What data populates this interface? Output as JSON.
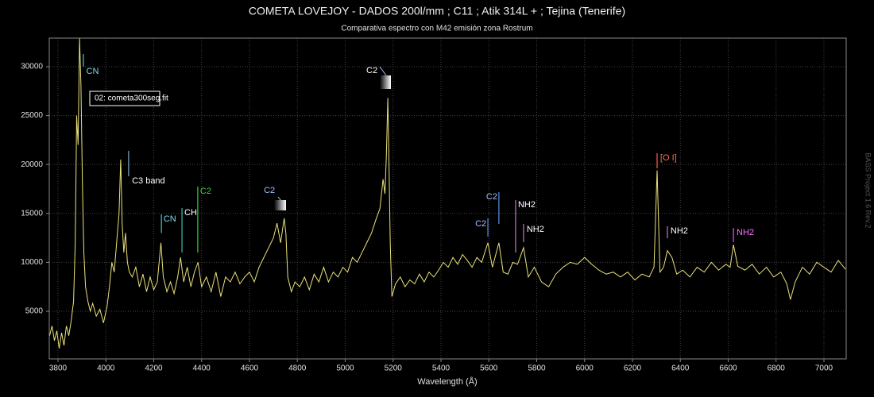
{
  "chart_data": {
    "type": "line",
    "title": "COMETA LOVEJOY - DADOS 200l/mm ; C11 ; Atik 314L + ; Tejina (Tenerife)",
    "subtitle": "Comparativa espectro con M42 emisión zona Rostrum",
    "x_label": "Wavelength (Å)",
    "watermark": "BASS Project 1.6 Rev.2",
    "grid": true,
    "x": [
      3765,
      3775,
      3785,
      3795,
      3805,
      3815,
      3825,
      3835,
      3845,
      3855,
      3865,
      3872,
      3878,
      3884,
      3890,
      3896,
      3902,
      3908,
      3915,
      3925,
      3935,
      3945,
      3960,
      3975,
      3990,
      4005,
      4015,
      4025,
      4035,
      4045,
      4055,
      4062,
      4068,
      4075,
      4082,
      4090,
      4098,
      4110,
      4125,
      4140,
      4155,
      4170,
      4185,
      4200,
      4215,
      4230,
      4240,
      4255,
      4270,
      4285,
      4300,
      4312,
      4325,
      4340,
      4355,
      4370,
      4385,
      4400,
      4420,
      4440,
      4460,
      4480,
      4500,
      4520,
      4540,
      4560,
      4580,
      4600,
      4620,
      4640,
      4660,
      4680,
      4700,
      4715,
      4730,
      4745,
      4752,
      4760,
      4775,
      4790,
      4810,
      4830,
      4850,
      4870,
      4890,
      4910,
      4930,
      4950,
      4970,
      4990,
      5010,
      5030,
      5050,
      5070,
      5090,
      5110,
      5130,
      5145,
      5158,
      5166,
      5172,
      5178,
      5183,
      5188,
      5195,
      5210,
      5230,
      5250,
      5270,
      5290,
      5310,
      5330,
      5350,
      5370,
      5390,
      5410,
      5430,
      5450,
      5470,
      5490,
      5510,
      5530,
      5550,
      5570,
      5596,
      5615,
      5642,
      5660,
      5680,
      5700,
      5720,
      5745,
      5765,
      5790,
      5820,
      5850,
      5880,
      5910,
      5940,
      5970,
      6000,
      6030,
      6060,
      6090,
      6120,
      6150,
      6180,
      6210,
      6240,
      6270,
      6290,
      6303,
      6315,
      6330,
      6346,
      6365,
      6385,
      6410,
      6440,
      6470,
      6500,
      6530,
      6560,
      6590,
      6608,
      6622,
      6640,
      6670,
      6700,
      6730,
      6760,
      6790,
      6820,
      6845,
      6860,
      6880,
      6910,
      6940,
      6970,
      7000,
      7030,
      7060,
      7090
    ],
    "series": [
      {
        "name": "02: cometa300seg.fit",
        "color": "#ece27a",
        "values": [
          2500,
          3500,
          2000,
          3000,
          1200,
          2800,
          1500,
          3500,
          2500,
          4000,
          6000,
          12000,
          25000,
          22000,
          32900,
          28000,
          18000,
          11000,
          7500,
          6000,
          5000,
          5800,
          4500,
          5200,
          3800,
          5500,
          7500,
          10000,
          9000,
          12000,
          15000,
          20500,
          14000,
          11000,
          13000,
          10000,
          9000,
          8500,
          9500,
          7500,
          8800,
          7000,
          8500,
          7200,
          8000,
          12000,
          8500,
          7000,
          8000,
          6800,
          8500,
          10500,
          8000,
          9500,
          7500,
          9000,
          10000,
          7500,
          8500,
          7000,
          9000,
          6500,
          8500,
          8000,
          9000,
          7800,
          8500,
          9000,
          8000,
          9500,
          10500,
          11500,
          12500,
          14000,
          12000,
          14500,
          13000,
          8500,
          7000,
          8000,
          7500,
          8500,
          7200,
          8800,
          8000,
          9500,
          8000,
          9000,
          8500,
          9500,
          9000,
          10500,
          10000,
          11000,
          12000,
          13000,
          14500,
          15500,
          18500,
          17000,
          21000,
          26800,
          20000,
          12000,
          6500,
          7800,
          8500,
          7500,
          8200,
          7800,
          8800,
          8000,
          9000,
          8500,
          9200,
          10000,
          9500,
          10500,
          9800,
          10800,
          10200,
          9500,
          10500,
          10000,
          12000,
          9500,
          12000,
          9000,
          8800,
          10000,
          9800,
          11500,
          8500,
          9500,
          8000,
          7500,
          8800,
          9500,
          10000,
          9800,
          10500,
          9800,
          9200,
          8800,
          9000,
          8500,
          9000,
          8200,
          8800,
          8500,
          9500,
          19400,
          9000,
          9500,
          11200,
          10500,
          8800,
          9200,
          8500,
          9500,
          9000,
          10000,
          9200,
          9800,
          9500,
          11800,
          9600,
          9200,
          9800,
          8800,
          9500,
          8500,
          9000,
          7800,
          6200,
          8000,
          9500,
          8800,
          10000,
          9500,
          9000,
          10200,
          9300
        ]
      }
    ],
    "xlim": [
      3763.5,
      7093
    ],
    "ylim": [
      130,
      32920
    ],
    "xticks": [
      3800,
      4000,
      4200,
      4400,
      4600,
      4800,
      5000,
      5200,
      5400,
      5600,
      5800,
      6000,
      6200,
      6400,
      6600,
      6800,
      7000
    ],
    "yticks": [
      5000,
      10000,
      15000,
      20000,
      25000,
      30000
    ],
    "annotations": [
      {
        "label": "CN",
        "x": 3906,
        "line": [
          30000,
          31300
        ],
        "label_x": 3918,
        "label_y": 29500,
        "color": "#4fc6d6",
        "text_color": "#7fdcea"
      },
      {
        "label": "C3 band",
        "x": 4095,
        "line": [
          18800,
          21400
        ],
        "label_x": 4109,
        "label_y": 18300,
        "color": "#7aa7c7",
        "text_color": "#ffffff"
      },
      {
        "label": "CN",
        "x": 4232,
        "line": [
          13000,
          14900
        ],
        "label_x": 4241,
        "label_y": 14400,
        "color": "#3fc9c9",
        "text_color": "#7fdcea"
      },
      {
        "label": "CH",
        "x": 4318,
        "line": [
          11000,
          15550
        ],
        "label_x": 4328,
        "label_y": 15060,
        "color": "#3fb8b8",
        "text_color": "#ffffff"
      },
      {
        "label": "C2",
        "x": 4384,
        "line": [
          11000,
          17740
        ],
        "label_x": 4394,
        "label_y": 17260,
        "color": "#3ed23e",
        "text_color": "#3ed23e"
      },
      {
        "label": "C2",
        "label_x": 4660,
        "label_y": 17340,
        "text_color": "#9fc0ff"
      },
      {
        "label": "C2",
        "label_x": 5088,
        "label_y": 29600,
        "text_color": "#ffffff"
      },
      {
        "label": "C2",
        "x": 5642,
        "line": [
          13930,
          17180
        ],
        "label_x": 5589,
        "label_y": 16690,
        "color": "#5a8fdc",
        "text_color": "#9fc0ff"
      },
      {
        "label": "C2",
        "x": 5596,
        "line": [
          12630,
          14500
        ],
        "label_x": 5543,
        "label_y": 13930,
        "color": "#5a8fdc",
        "text_color": "#9fc0ff"
      },
      {
        "label": "NH2",
        "x": 5712,
        "line": [
          11000,
          16360
        ],
        "label_x": 5722,
        "label_y": 15880,
        "color": "#d070d0",
        "text_color": "#ffffff"
      },
      {
        "label": "NH2",
        "x": 5745,
        "line": [
          12060,
          13930
        ],
        "label_x": 5758,
        "label_y": 13360,
        "color": "#d070d0",
        "text_color": "#ffffff"
      },
      {
        "label": "[O I]",
        "x": 6303,
        "line": [
          19610,
          21150
        ],
        "label_x": 6316,
        "label_y": 20670,
        "color": "#ff6040",
        "text_color": "#ff7050"
      },
      {
        "label": "NH2",
        "x": 6346,
        "line": [
          12470,
          13690
        ],
        "label_x": 6359,
        "label_y": 13200,
        "color": "#d070d0",
        "text_color": "#ffffff"
      },
      {
        "label": "NH2",
        "x": 6622,
        "line": [
          12060,
          13520
        ],
        "label_x": 6635,
        "label_y": 13040,
        "color": "#ff40ff",
        "text_color": "#ff70ff"
      }
    ]
  }
}
